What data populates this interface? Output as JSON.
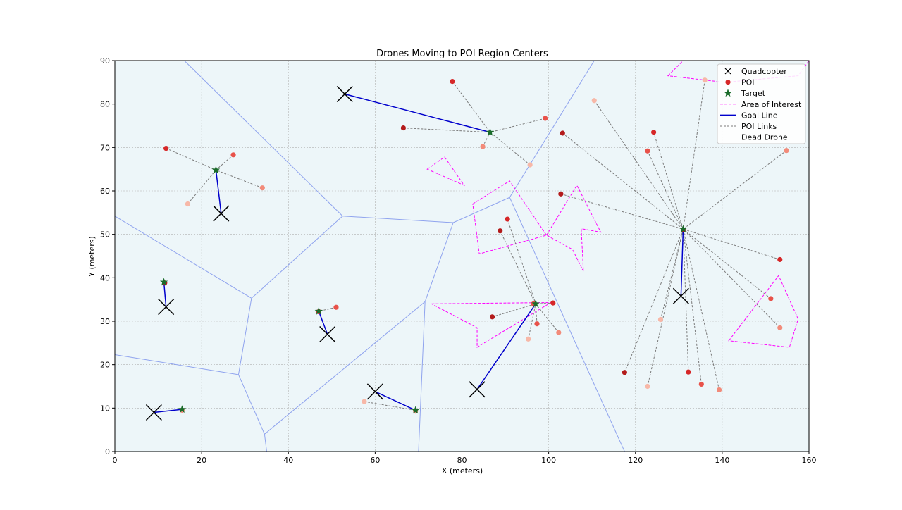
{
  "chart_data": {
    "type": "scatter",
    "title": "Drones Moving to POI Region Centers",
    "xlabel": "X (meters)",
    "ylabel": "Y (meters)",
    "xlim": [
      0,
      160
    ],
    "ylim": [
      0,
      90
    ],
    "xticks": [
      0,
      20,
      40,
      60,
      80,
      100,
      120,
      140,
      160
    ],
    "yticks": [
      0,
      10,
      20,
      30,
      40,
      50,
      60,
      70,
      80,
      90
    ],
    "grid": true,
    "legend_position": "top-right",
    "legend": [
      "Quadcopter",
      "POI",
      "Target",
      "Area of Interest",
      "Goal Line",
      "POI Links",
      "Dead Drone"
    ],
    "colors": {
      "background": "#edf6f9",
      "voronoi": "#8fa3ee",
      "poi": "#d62728",
      "target": "#1a6b2a",
      "area": "#ff00ff",
      "goal": "#0000cc",
      "links": "#7a7a7a",
      "drone": "#000000"
    },
    "voronoi_segments": [
      [
        [
          16,
          90
        ],
        [
          52.5,
          54.2
        ]
      ],
      [
        [
          52.5,
          54.2
        ],
        [
          31.5,
          35.3
        ]
      ],
      [
        [
          52.5,
          54.2
        ],
        [
          78,
          52.7
        ]
      ],
      [
        [
          0,
          54.2
        ],
        [
          31.5,
          35.3
        ]
      ],
      [
        [
          31.5,
          35.3
        ],
        [
          28.5,
          17.7
        ]
      ],
      [
        [
          0,
          22.3
        ],
        [
          28.5,
          17.7
        ]
      ],
      [
        [
          28.5,
          17.7
        ],
        [
          34.5,
          4
        ]
      ],
      [
        [
          34.5,
          4
        ],
        [
          35,
          0
        ]
      ],
      [
        [
          34.5,
          4
        ],
        [
          71.5,
          34.5
        ]
      ],
      [
        [
          71.5,
          34.5
        ],
        [
          70,
          0
        ]
      ],
      [
        [
          71.5,
          34.5
        ],
        [
          78,
          52.7
        ]
      ],
      [
        [
          78,
          52.7
        ],
        [
          91,
          58.5
        ]
      ],
      [
        [
          91,
          58.5
        ],
        [
          110.5,
          90
        ]
      ],
      [
        [
          91,
          58.5
        ],
        [
          117.5,
          0
        ]
      ]
    ],
    "areas": [
      [
        [
          72,
          65
        ],
        [
          76,
          67.8
        ],
        [
          80.5,
          61.3
        ]
      ],
      [
        [
          82.5,
          57
        ],
        [
          91,
          62.3
        ],
        [
          99.5,
          49.8
        ],
        [
          84,
          45.5
        ]
      ],
      [
        [
          99.5,
          49.8
        ],
        [
          106.5,
          61.3
        ],
        [
          112,
          50.5
        ],
        [
          107.5,
          51.3
        ],
        [
          108,
          41.5
        ],
        [
          105.5,
          46.5
        ]
      ],
      [
        [
          73,
          34
        ],
        [
          100.5,
          34.3
        ],
        [
          83.5,
          24
        ],
        [
          83.5,
          28.5
        ]
      ],
      [
        [
          141.5,
          25.5
        ],
        [
          153,
          40.5
        ],
        [
          157.5,
          30.5
        ],
        [
          155.5,
          24
        ]
      ],
      [
        [
          127.5,
          86.5
        ],
        [
          131,
          90
        ],
        [
          160,
          90
        ],
        [
          157.5,
          86.5
        ],
        [
          140.5,
          85
        ]
      ]
    ],
    "drones": [
      {
        "pos": [
          53,
          82.3
        ],
        "target": [
          86.5,
          73.5
        ]
      },
      {
        "pos": [
          24.5,
          54.8
        ],
        "target": [
          23.3,
          64.8
        ]
      },
      {
        "pos": [
          11.8,
          33.3
        ],
        "target": [
          11.3,
          39
        ]
      },
      {
        "pos": [
          49,
          27
        ],
        "target": [
          47,
          32.3
        ]
      },
      {
        "pos": [
          60,
          13.8
        ],
        "target": [
          69.3,
          9.5
        ]
      },
      {
        "pos": [
          83.5,
          14.3
        ],
        "target": [
          97,
          34
        ]
      },
      {
        "pos": [
          9,
          9
        ],
        "target": [
          15.5,
          9.7
        ]
      },
      {
        "pos": [
          130.5,
          35.8
        ],
        "target": [
          131,
          51.2
        ]
      }
    ],
    "pois": [
      {
        "p": [
          77.8,
          85.2
        ],
        "t": 0
      },
      {
        "p": [
          99.2,
          76.7
        ],
        "t": 0
      },
      {
        "p": [
          84.8,
          70.2
        ],
        "t": 0
      },
      {
        "p": [
          95.7,
          66
        ],
        "t": 0
      },
      {
        "p": [
          66.5,
          74.5
        ],
        "t": 0
      },
      {
        "p": [
          11.8,
          69.8
        ],
        "t": 1
      },
      {
        "p": [
          27.3,
          68.3
        ],
        "t": 1
      },
      {
        "p": [
          34,
          60.7
        ],
        "t": 1
      },
      {
        "p": [
          16.8,
          57
        ],
        "t": 1
      },
      {
        "p": [
          11.5,
          38.8
        ],
        "t": 2
      },
      {
        "p": [
          47,
          32.2
        ],
        "t": 3
      },
      {
        "p": [
          51,
          33.2
        ],
        "t": 3
      },
      {
        "p": [
          69.3,
          9.3
        ],
        "t": 4
      },
      {
        "p": [
          57.5,
          11.5
        ],
        "t": 4
      },
      {
        "p": [
          88.8,
          50.8
        ],
        "t": 5
      },
      {
        "p": [
          101,
          34.2
        ],
        "t": 5
      },
      {
        "p": [
          97.3,
          29.4
        ],
        "t": 5
      },
      {
        "p": [
          102.3,
          27.4
        ],
        "t": 5
      },
      {
        "p": [
          95.3,
          25.9
        ],
        "t": 5
      },
      {
        "p": [
          87,
          31
        ],
        "t": 5
      },
      {
        "p": [
          90.5,
          53.5
        ],
        "t": 5
      },
      {
        "p": [
          96.5,
          34
        ],
        "t": 5
      },
      {
        "p": [
          15.5,
          9.5
        ],
        "t": 6
      },
      {
        "p": [
          136,
          85.5
        ],
        "t": 7
      },
      {
        "p": [
          103.2,
          73.3
        ],
        "t": 7
      },
      {
        "p": [
          124.2,
          73.5
        ],
        "t": 7
      },
      {
        "p": [
          122.8,
          69.2
        ],
        "t": 7
      },
      {
        "p": [
          154.8,
          69.3
        ],
        "t": 7
      },
      {
        "p": [
          110.5,
          80.8
        ],
        "t": 7
      },
      {
        "p": [
          102.8,
          59.3
        ],
        "t": 7
      },
      {
        "p": [
          153.3,
          44.2
        ],
        "t": 7
      },
      {
        "p": [
          151.2,
          35.2
        ],
        "t": 7
      },
      {
        "p": [
          153.3,
          28.5
        ],
        "t": 7
      },
      {
        "p": [
          125.8,
          30.4
        ],
        "t": 7
      },
      {
        "p": [
          117.5,
          18.2
        ],
        "t": 7
      },
      {
        "p": [
          132.2,
          18.3
        ],
        "t": 7
      },
      {
        "p": [
          135.2,
          15.5
        ],
        "t": 7
      },
      {
        "p": [
          139.3,
          14.2
        ],
        "t": 7
      },
      {
        "p": [
          122.8,
          15
        ],
        "t": 7
      },
      {
        "p": [
          131,
          51
        ],
        "t": 7
      }
    ]
  }
}
